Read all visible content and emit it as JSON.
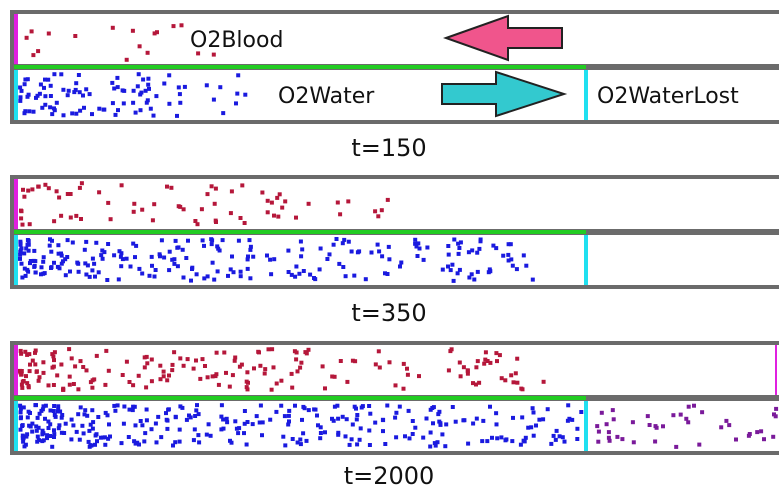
{
  "colors": {
    "frame": "#6b6b6b",
    "divider_green": "#22cc22",
    "blood_particle": "#b5173a",
    "water_particle": "#1a1adf",
    "lost_particle": "#7a1a9a",
    "blood_edge_magenta": "#e020e0",
    "water_edge_cyan": "#20e0f0",
    "arrow_left_fill": "#f0558c",
    "arrow_right_fill": "#33c9cf"
  },
  "icons": {
    "left_arrow": "arrow-left-icon",
    "right_arrow": "arrow-right-icon"
  },
  "labels": {
    "blood": "O2Blood",
    "water": "O2Water",
    "lost": "O2WaterLost"
  },
  "panels": [
    {
      "caption": "t=150",
      "blood_density": 0.1,
      "water_density": 0.55,
      "lost_density": 0.0
    },
    {
      "caption": "t=350",
      "blood_density": 0.25,
      "water_density": 0.6,
      "lost_density": 0.0
    },
    {
      "caption": "t=2000",
      "blood_density": 0.45,
      "water_density": 0.75,
      "lost_density": 0.3
    }
  ]
}
